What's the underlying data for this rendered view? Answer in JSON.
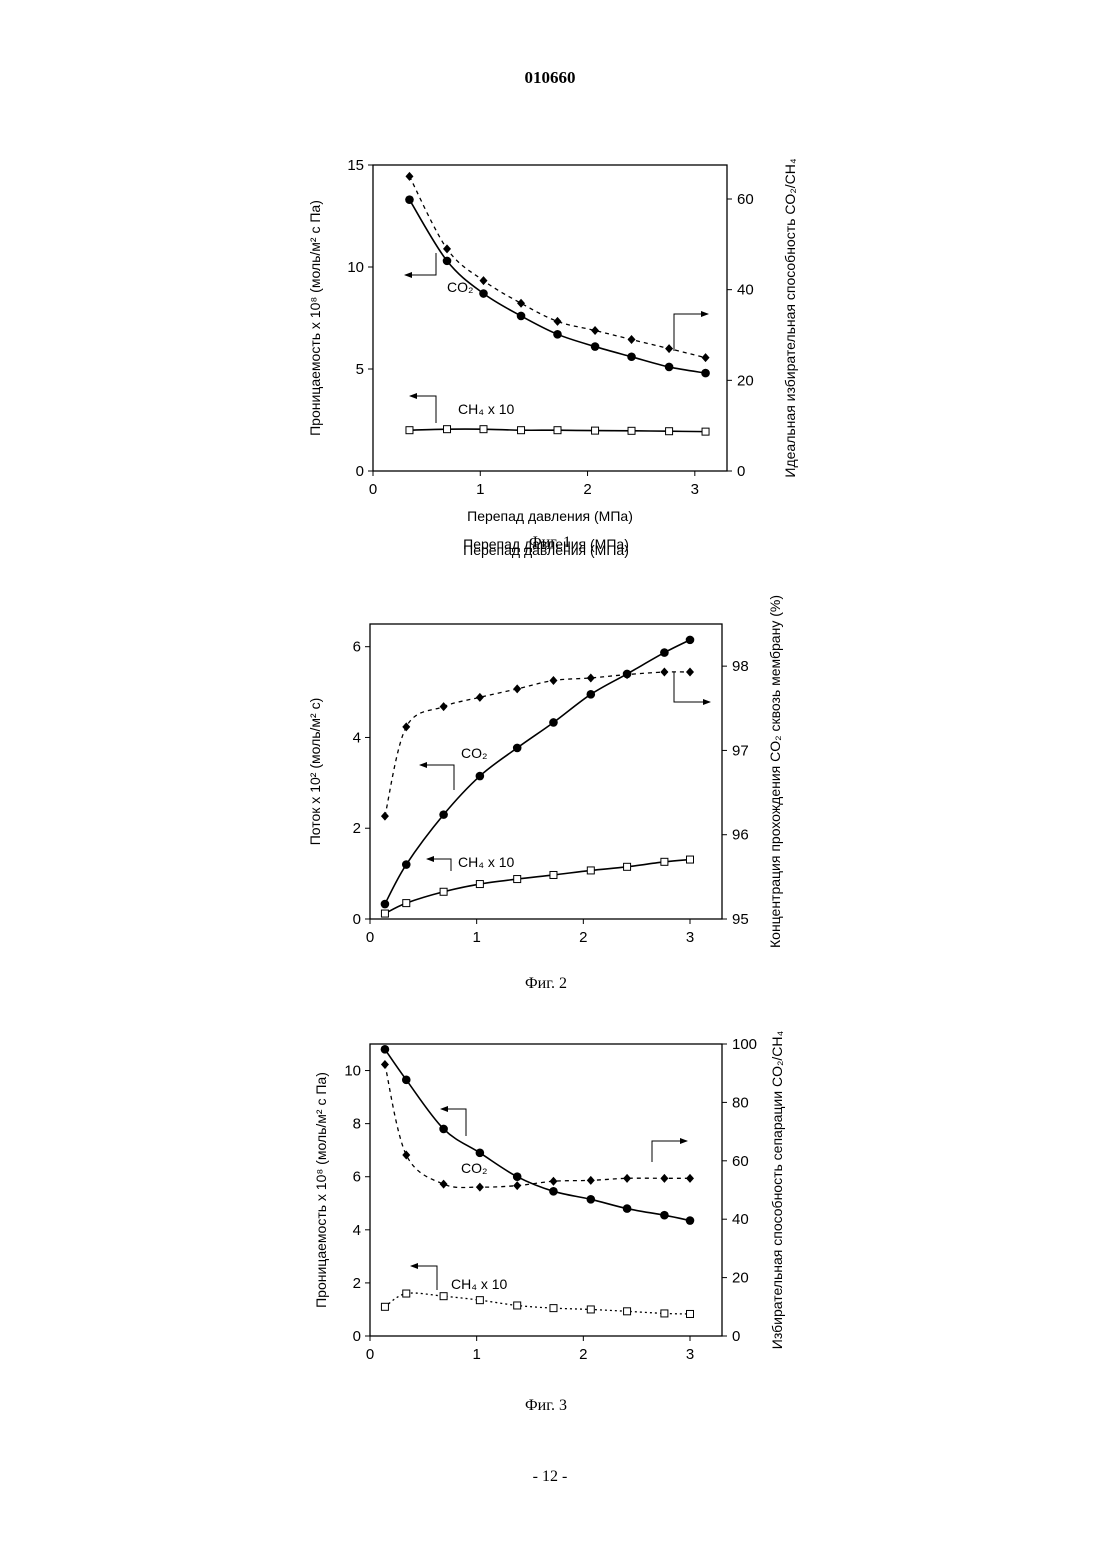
{
  "header": {
    "doc_number": "010660"
  },
  "footer": {
    "page_label": "- 12 -"
  },
  "chart_data": [
    {
      "type": "line",
      "caption": "Фиг. 1",
      "xlabel": "Перепад давления (МПа)",
      "ylabel": "Проницаемость x 10⁸ (моль/м² с Па)",
      "y2label": "Идеальная избирательная способность CO₂/CH₄",
      "xlim": [
        0,
        3.3
      ],
      "ylim": [
        0,
        15
      ],
      "y2lim": [
        0,
        67.5
      ],
      "xticks": [
        0,
        1,
        2,
        3
      ],
      "yticks": [
        0,
        5,
        10,
        15
      ],
      "y2ticks": [
        0,
        20,
        40,
        60
      ],
      "grid": false,
      "annotations": [
        "CO₂",
        "CH₄ x 10"
      ],
      "series": [
        {
          "name": "CO₂",
          "axis": "left",
          "marker": "circle",
          "line": "solid",
          "x": [
            0.34,
            0.69,
            1.03,
            1.38,
            1.72,
            2.07,
            2.41,
            2.76,
            3.1
          ],
          "y": [
            13.3,
            10.3,
            8.7,
            7.6,
            6.7,
            6.1,
            5.6,
            5.1,
            4.8
          ]
        },
        {
          "name": "CH₄ x 10",
          "axis": "left",
          "marker": "square",
          "line": "solid",
          "x": [
            0.34,
            0.69,
            1.03,
            1.38,
            1.72,
            2.07,
            2.41,
            2.76,
            3.1
          ],
          "y": [
            2.0,
            2.05,
            2.05,
            2.0,
            2.0,
            1.98,
            1.97,
            1.95,
            1.93
          ]
        },
        {
          "axis": "right",
          "marker": "diamond",
          "line": "dashed",
          "x": [
            0.34,
            0.69,
            1.03,
            1.38,
            1.72,
            2.07,
            2.41,
            2.76,
            3.1
          ],
          "y": [
            65,
            49,
            42,
            37,
            33,
            31,
            29,
            27,
            25
          ]
        }
      ]
    },
    {
      "type": "line",
      "caption": "Фиг. 2",
      "xlabel": "Перепад давления (МПа)",
      "ylabel": "Поток x 10² (моль/м² с)",
      "y2label": "Концентрация прохождения CO₂ сквозь мембрану (%)",
      "xlim": [
        0,
        3.3
      ],
      "ylim": [
        0,
        6.5
      ],
      "y2lim": [
        95,
        98.5
      ],
      "xticks": [
        0,
        1,
        2,
        3
      ],
      "yticks": [
        0,
        2,
        4,
        6
      ],
      "y2ticks": [
        95,
        96,
        97,
        98
      ],
      "grid": false,
      "annotations": [
        "CO₂",
        "CH₄ x 10"
      ],
      "series": [
        {
          "name": "CO₂",
          "axis": "left",
          "marker": "circle",
          "line": "solid",
          "x": [
            0.14,
            0.34,
            0.69,
            1.03,
            1.38,
            1.72,
            2.07,
            2.41,
            2.76,
            3.0
          ],
          "y": [
            0.33,
            1.2,
            2.3,
            3.15,
            3.77,
            4.33,
            4.95,
            5.4,
            5.87,
            6.15
          ]
        },
        {
          "name": "CH₄ x 10",
          "axis": "left",
          "marker": "square",
          "line": "solid",
          "x": [
            0.14,
            0.34,
            0.69,
            1.03,
            1.38,
            1.72,
            2.07,
            2.41,
            2.76,
            3.0
          ],
          "y": [
            0.12,
            0.35,
            0.6,
            0.77,
            0.88,
            0.97,
            1.07,
            1.15,
            1.26,
            1.31
          ]
        },
        {
          "axis": "right",
          "marker": "diamond",
          "line": "dashed",
          "x": [
            0.14,
            0.34,
            0.69,
            1.03,
            1.38,
            1.72,
            2.07,
            2.41,
            2.76,
            3.0
          ],
          "y": [
            96.22,
            97.28,
            97.52,
            97.63,
            97.73,
            97.83,
            97.86,
            97.9,
            97.93,
            97.93
          ]
        }
      ]
    },
    {
      "type": "line",
      "caption": "Фиг. 3",
      "xlabel": "Перепад давления (МПа)",
      "ylabel": "Проницаемость x 10⁸ (моль/м² с Па)",
      "y2label": "Избирательная способность сепарации CO₂/CH₄",
      "xlim": [
        0,
        3.3
      ],
      "ylim": [
        0,
        11
      ],
      "y2lim": [
        0,
        100
      ],
      "xticks": [
        0,
        1,
        2,
        3
      ],
      "yticks": [
        0,
        2,
        4,
        6,
        8,
        10
      ],
      "y2ticks": [
        0,
        20,
        40,
        60,
        80,
        100
      ],
      "grid": false,
      "annotations": [
        "CO₂",
        "CH₄ x 10"
      ],
      "series": [
        {
          "name": "CO₂",
          "axis": "left",
          "marker": "circle",
          "line": "solid",
          "x": [
            0.14,
            0.34,
            0.69,
            1.03,
            1.38,
            1.72,
            2.07,
            2.41,
            2.76,
            3.0
          ],
          "y": [
            10.8,
            9.65,
            7.8,
            6.9,
            6.0,
            5.45,
            5.15,
            4.8,
            4.55,
            4.35
          ]
        },
        {
          "name": "CH₄ x 10",
          "axis": "left",
          "marker": "square",
          "line": "dotted",
          "x": [
            0.14,
            0.34,
            0.69,
            1.03,
            1.38,
            1.72,
            2.07,
            2.41,
            2.76,
            3.0
          ],
          "y": [
            1.1,
            1.6,
            1.5,
            1.35,
            1.15,
            1.05,
            1.0,
            0.93,
            0.85,
            0.83
          ]
        },
        {
          "axis": "right",
          "marker": "diamond",
          "line": "dashed",
          "x": [
            0.14,
            0.34,
            0.69,
            1.03,
            1.38,
            1.72,
            2.07,
            2.41,
            2.76,
            3.0
          ],
          "y": [
            93,
            62,
            52,
            51,
            51.5,
            53,
            53.3,
            54,
            54,
            54
          ]
        }
      ]
    }
  ]
}
